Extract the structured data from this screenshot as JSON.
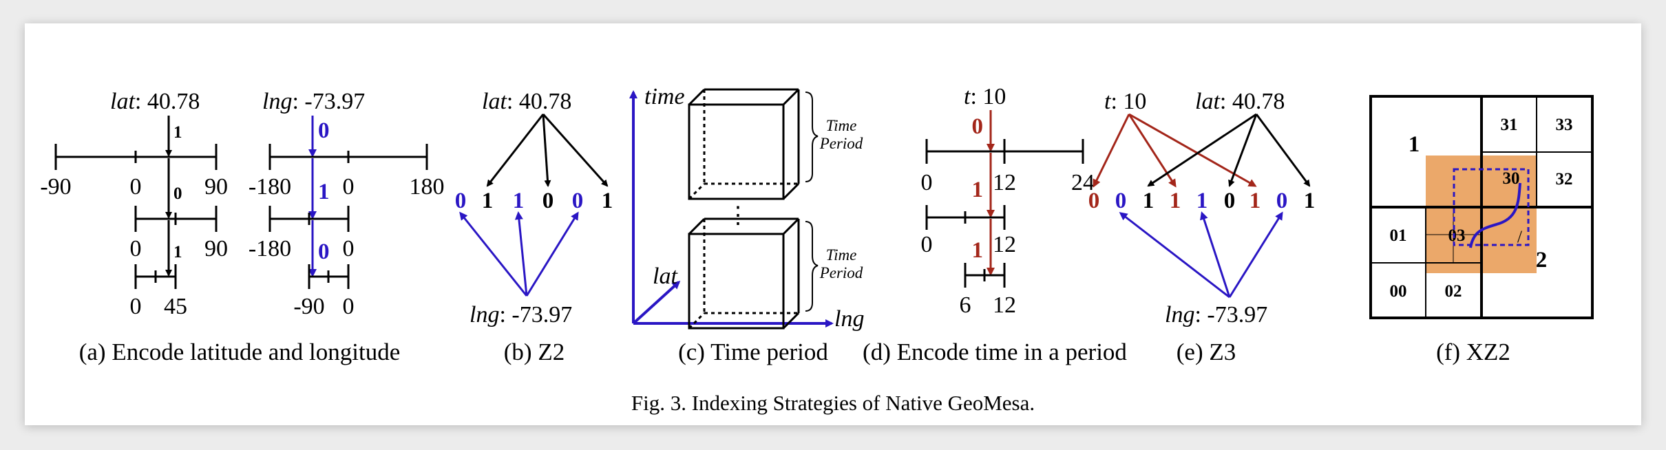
{
  "caption": "Fig. 3.  Indexing Strategies of Native GeoMesa.",
  "panels": {
    "a": {
      "caption": "(a) Encode latitude and longitude",
      "lat_label": "lat",
      "lat_value": ": 40.78",
      "lng_label": "lng",
      "lng_value": ": -73.97",
      "lat_bits": [
        "1",
        "0",
        "1"
      ],
      "lng_bits": [
        "0",
        "1",
        "0"
      ],
      "lat_ticks": {
        "l1": [
          "-90",
          "0",
          "90"
        ],
        "l2": [
          "0",
          "90"
        ],
        "l3": [
          "0",
          "45"
        ]
      },
      "lng_ticks": {
        "l1": [
          "-180",
          "0",
          "180"
        ],
        "l2": [
          "-180",
          "0"
        ],
        "l3": [
          "-90",
          "0"
        ]
      }
    },
    "b": {
      "caption": "(b) Z2",
      "lat_label": "lat",
      "lat_value": ": 40.78",
      "lng_label": "lng",
      "lng_value": ": -73.97",
      "bits": [
        "0",
        "1",
        "1",
        "0",
        "0",
        "1"
      ],
      "bit_colors": [
        "blue",
        "black",
        "blue",
        "black",
        "blue",
        "black"
      ]
    },
    "c": {
      "caption": "(c) Time period",
      "axis_time": "time",
      "axis_lat": "lat",
      "axis_lng": "lng",
      "period_line1": "Time",
      "period_line2": "Period",
      "dots": "⋮"
    },
    "d": {
      "caption": "(d) Encode time in a period",
      "t_label": "t",
      "t_value": ": 10",
      "bits": [
        "0",
        "1",
        "1"
      ],
      "ticks": {
        "l1": [
          "0",
          "12",
          "24"
        ],
        "l2": [
          "0",
          "12"
        ],
        "l3": [
          "6",
          "12"
        ]
      }
    },
    "e": {
      "caption": "(e) Z3",
      "t_label": "t",
      "t_value": ": 10",
      "lat_label": "lat",
      "lat_value": ": 40.78",
      "lng_label": "lng",
      "lng_value": ": -73.97",
      "bits": [
        "0",
        "0",
        "1",
        "1",
        "1",
        "0",
        "1",
        "0",
        "1"
      ],
      "bit_colors": [
        "red",
        "blue",
        "black",
        "red",
        "blue",
        "black",
        "red",
        "blue",
        "black"
      ]
    },
    "f": {
      "caption": "(f) XZ2",
      "cells": [
        "31",
        "33",
        "30",
        "32",
        "01",
        "03",
        "00",
        "02"
      ],
      "marker_1": "1",
      "marker_2": "2",
      "slash": "/",
      "highlight_color": "#eba86a"
    }
  },
  "colors": {
    "blue": "#2a16c4",
    "red": "#a3261a",
    "black": "#000000"
  }
}
